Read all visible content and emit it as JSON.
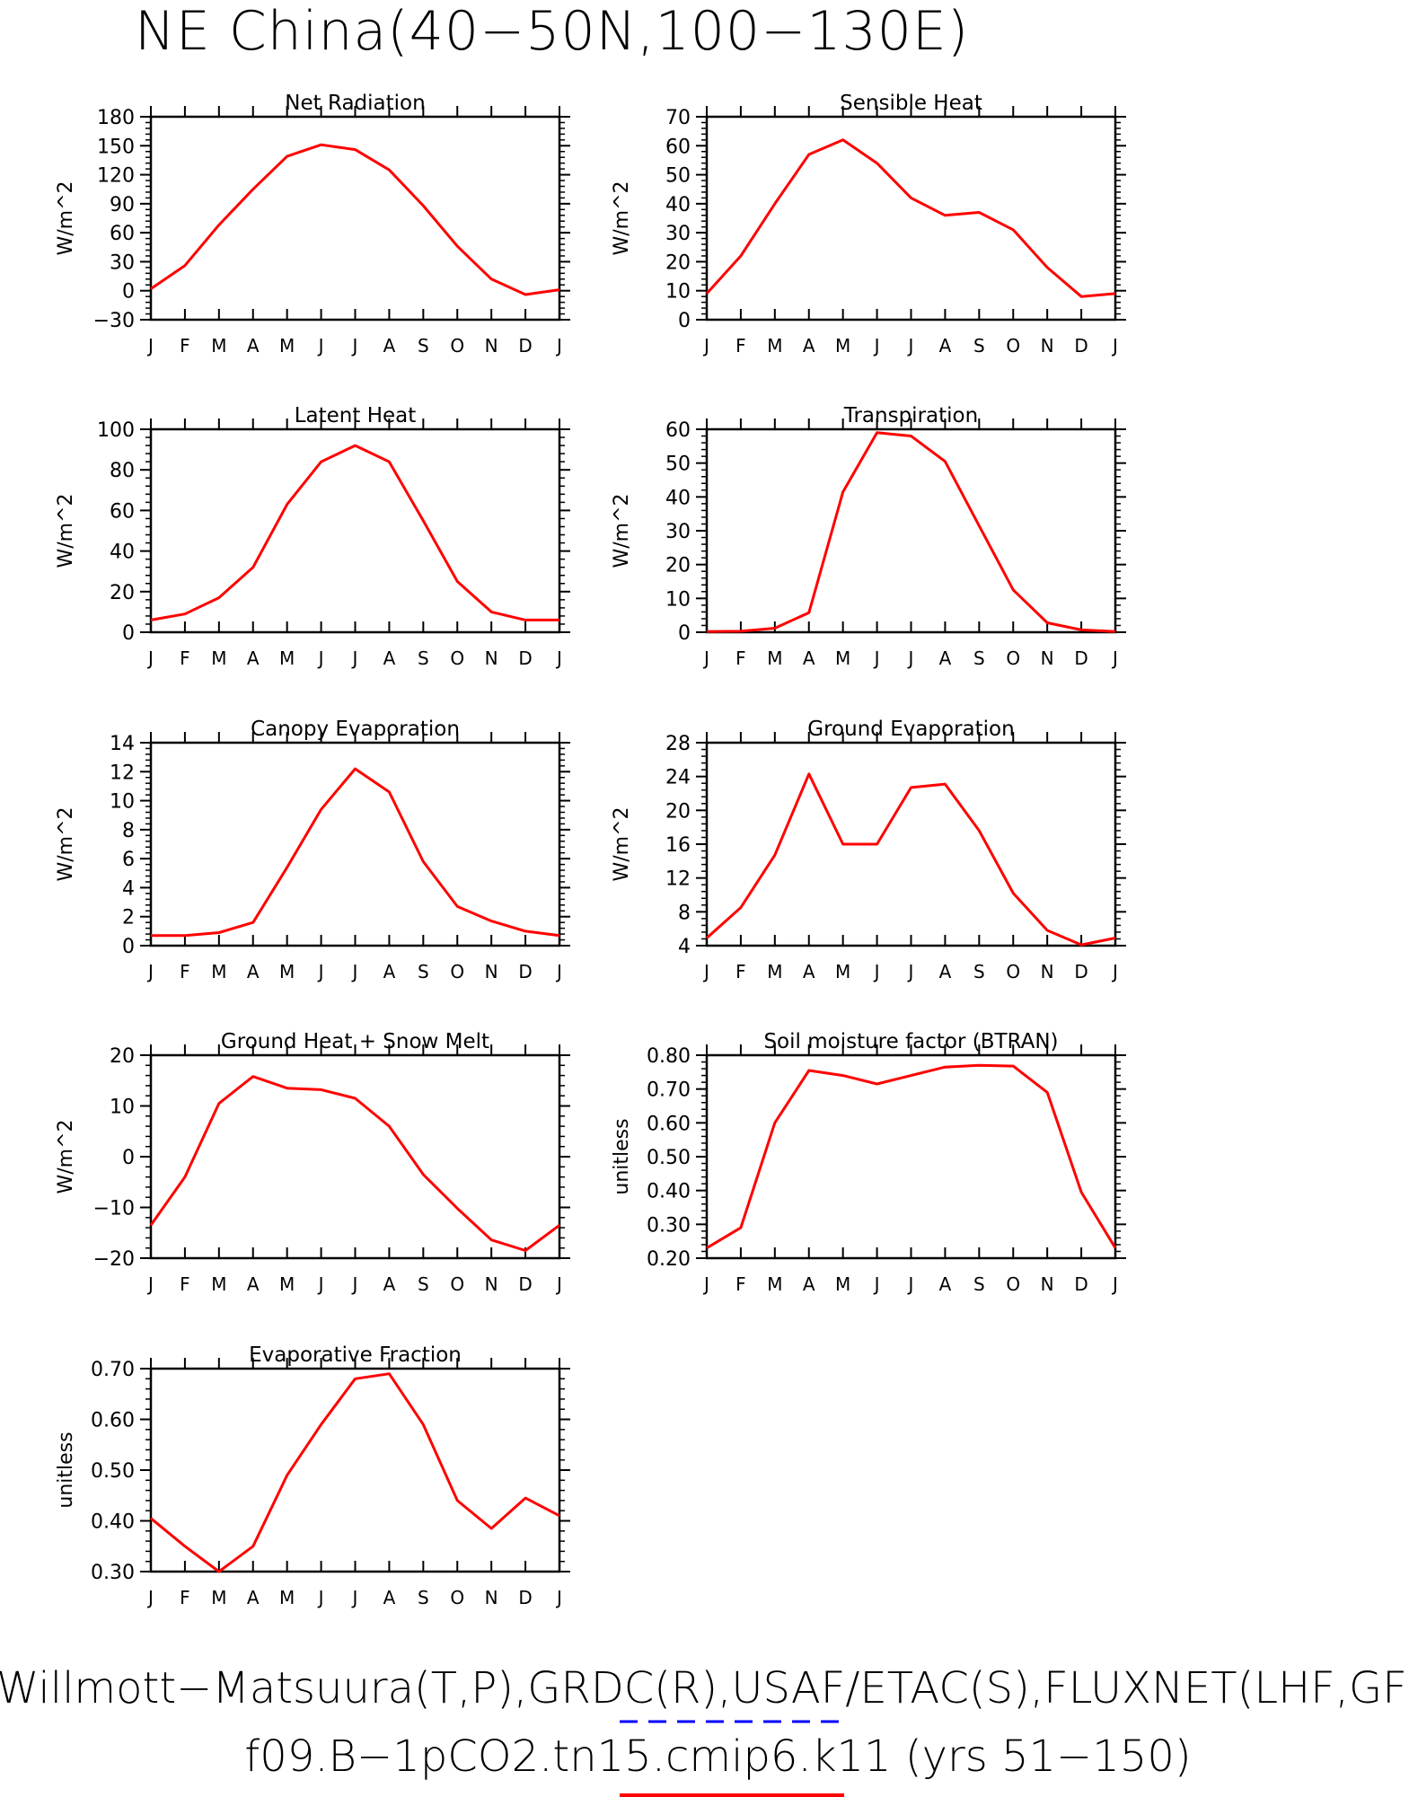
{
  "title": "NE China(40−50N,100−130E)",
  "footer": {
    "refs": "Willmott−Matsuura(T,P),GRDC(R),USAF/ETAC(S),FLUXNET(LHF,GF",
    "case": "f09.B−1pCO2.tn15.cmip6.k11 (yrs 51−150)"
  },
  "colors": {
    "line": "#ff0000",
    "axis": "#000000",
    "legend_dash": "#0000ff"
  },
  "chart_data": [
    {
      "type": "line",
      "title": "Net Radiation",
      "ylabel": "W/m^2",
      "categories": [
        "J",
        "F",
        "M",
        "A",
        "M",
        "J",
        "J",
        "A",
        "S",
        "O",
        "N",
        "D",
        "J"
      ],
      "values": [
        2,
        26,
        68,
        105,
        139,
        151,
        146,
        125,
        88,
        46,
        12,
        -4,
        1
      ],
      "ylim": [
        -30,
        180
      ],
      "yticks": [
        "-30",
        "0",
        "30",
        "60",
        "90",
        "120",
        "150",
        "180"
      ]
    },
    {
      "type": "line",
      "title": "Sensible Heat",
      "ylabel": "W/m^2",
      "categories": [
        "J",
        "F",
        "M",
        "A",
        "M",
        "J",
        "J",
        "A",
        "S",
        "O",
        "N",
        "D",
        "J"
      ],
      "values": [
        9,
        22,
        40,
        57,
        62,
        54,
        42,
        36,
        37,
        31,
        18,
        8,
        9
      ],
      "ylim": [
        0,
        70
      ],
      "yticks": [
        "0",
        "10",
        "20",
        "30",
        "40",
        "50",
        "60",
        "70"
      ]
    },
    {
      "type": "line",
      "title": "Latent Heat",
      "ylabel": "W/m^2",
      "categories": [
        "J",
        "F",
        "M",
        "A",
        "M",
        "J",
        "J",
        "A",
        "S",
        "O",
        "N",
        "D",
        "J"
      ],
      "values": [
        6,
        9,
        17,
        32,
        63,
        84,
        92,
        84,
        55,
        25,
        10,
        6,
        6
      ],
      "ylim": [
        0,
        100
      ],
      "yticks": [
        "0",
        "20",
        "40",
        "60",
        "80",
        "100"
      ]
    },
    {
      "type": "line",
      "title": "Transpiration",
      "ylabel": "W/m^2",
      "categories": [
        "J",
        "F",
        "M",
        "A",
        "M",
        "J",
        "J",
        "A",
        "S",
        "O",
        "N",
        "D",
        "J"
      ],
      "values": [
        0.2,
        0.3,
        1.2,
        5.8,
        41.5,
        59,
        58,
        50.5,
        31.5,
        12.5,
        2.8,
        0.7,
        0.2
      ],
      "ylim": [
        0,
        60
      ],
      "yticks": [
        "0",
        "10",
        "20",
        "30",
        "40",
        "50",
        "60"
      ]
    },
    {
      "type": "line",
      "title": "Canopy Evaporation",
      "ylabel": "W/m^2",
      "categories": [
        "J",
        "F",
        "M",
        "A",
        "M",
        "J",
        "J",
        "A",
        "S",
        "O",
        "N",
        "D",
        "J"
      ],
      "values": [
        0.7,
        0.7,
        0.9,
        1.6,
        5.4,
        9.4,
        12.2,
        10.6,
        5.8,
        2.7,
        1.7,
        1.0,
        0.7
      ],
      "ylim": [
        0,
        14
      ],
      "yticks": [
        "0",
        "2",
        "4",
        "6",
        "8",
        "10",
        "12",
        "14"
      ]
    },
    {
      "type": "line",
      "title": "Ground Evaporation",
      "ylabel": "W/m^2",
      "categories": [
        "J",
        "F",
        "M",
        "A",
        "M",
        "J",
        "J",
        "A",
        "S",
        "O",
        "N",
        "D",
        "J"
      ],
      "values": [
        4.9,
        8.5,
        14.7,
        24.3,
        16.0,
        16.0,
        22.7,
        23.1,
        17.6,
        10.2,
        5.8,
        4.1,
        4.9
      ],
      "ylim": [
        4,
        28
      ],
      "yticks": [
        "4",
        "8",
        "12",
        "16",
        "20",
        "24",
        "28"
      ]
    },
    {
      "type": "line",
      "title": "Ground Heat + Snow Melt",
      "ylabel": "W/m^2",
      "categories": [
        "J",
        "F",
        "M",
        "A",
        "M",
        "J",
        "J",
        "A",
        "S",
        "O",
        "N",
        "D",
        "J"
      ],
      "values": [
        -13.5,
        -4,
        10.5,
        15.8,
        13.5,
        13.2,
        11.5,
        6,
        -3.5,
        -10.2,
        -16.4,
        -18.5,
        -13.5
      ],
      "ylim": [
        -20,
        20
      ],
      "yticks": [
        "-20",
        "-10",
        "0",
        "10",
        "20"
      ]
    },
    {
      "type": "line",
      "title": "Soil moisture factor (BTRAN)",
      "ylabel": "unitless",
      "categories": [
        "J",
        "F",
        "M",
        "A",
        "M",
        "J",
        "J",
        "A",
        "S",
        "O",
        "N",
        "D",
        "J"
      ],
      "values": [
        0.23,
        0.29,
        0.6,
        0.755,
        0.74,
        0.715,
        0.74,
        0.765,
        0.77,
        0.768,
        0.69,
        0.395,
        0.23
      ],
      "ylim": [
        0.2,
        0.8
      ],
      "yticks": [
        "0.20",
        "0.30",
        "0.40",
        "0.50",
        "0.60",
        "0.70",
        "0.80"
      ]
    },
    {
      "type": "line",
      "title": "Evaporative Fraction",
      "ylabel": "unitless",
      "categories": [
        "J",
        "F",
        "M",
        "A",
        "M",
        "J",
        "J",
        "A",
        "S",
        "O",
        "N",
        "D",
        "J"
      ],
      "values": [
        0.405,
        0.35,
        0.3,
        0.35,
        0.49,
        0.59,
        0.68,
        0.69,
        0.59,
        0.44,
        0.385,
        0.445,
        0.41
      ],
      "ylim": [
        0.3,
        0.7
      ],
      "yticks": [
        "0.30",
        "0.40",
        "0.50",
        "0.60",
        "0.70"
      ]
    }
  ]
}
